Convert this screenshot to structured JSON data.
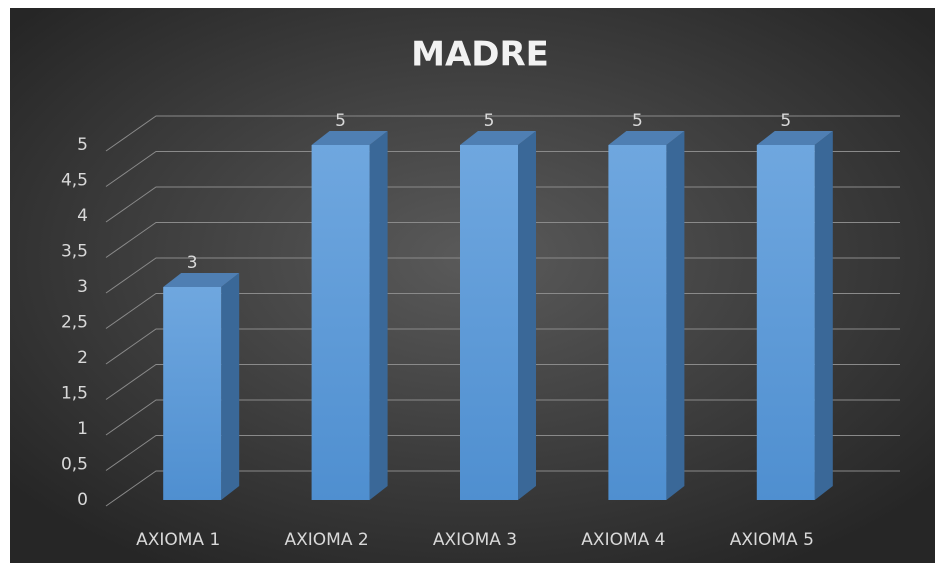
{
  "chart_data": {
    "type": "bar3d",
    "title": "MADRE",
    "categories": [
      "AXIOMA 1",
      "AXIOMA 2",
      "AXIOMA 3",
      "AXIOMA 4",
      "AXIOMA 5"
    ],
    "values": [
      3,
      5,
      5,
      5,
      5
    ],
    "color": "#5b9bd5",
    "ylim": [
      0,
      5
    ],
    "yticks": [
      0,
      {
        "value": 0.5,
        "label": "0,5"
      },
      1,
      {
        "value": 1.5,
        "label": "1,5"
      },
      2,
      {
        "value": 2.5,
        "label": "2,5"
      },
      3,
      {
        "value": 3.5,
        "label": "3,5"
      },
      4,
      {
        "value": 4.5,
        "label": "4,5"
      },
      5
    ],
    "grid": true,
    "data_labels": true
  }
}
